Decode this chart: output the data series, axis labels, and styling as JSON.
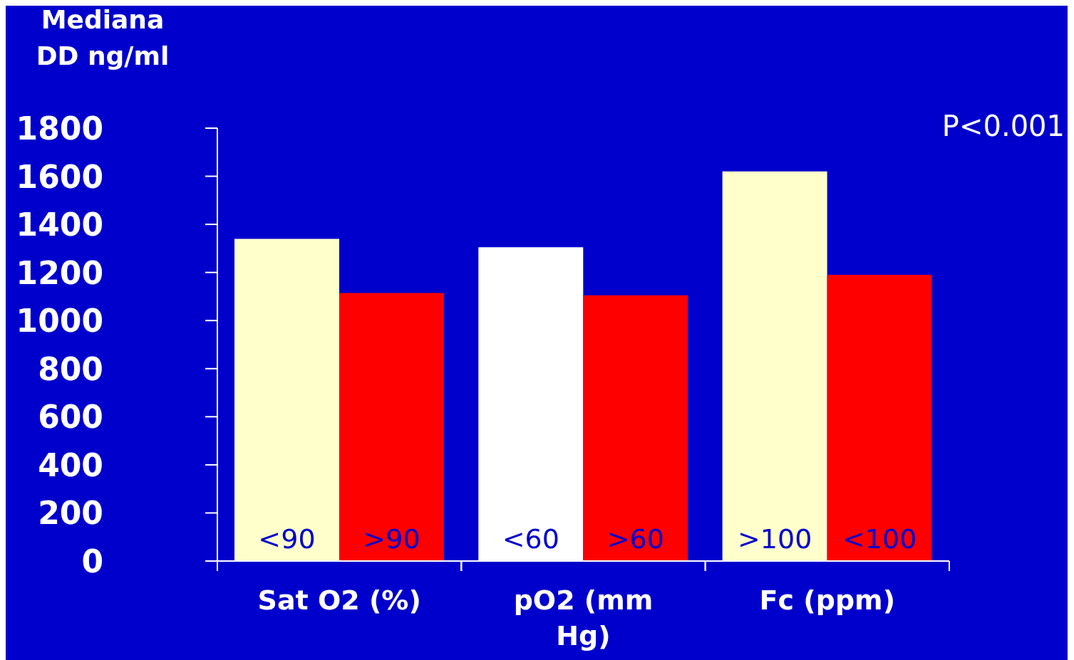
{
  "chart_data": {
    "type": "bar",
    "ylabel": "Mediana DD ng/ml",
    "categories": [
      "Sat O2 (%)",
      "pO2 (mm Hg)",
      "Fc (ppm)"
    ],
    "series": [
      {
        "colors": [
          "#ffffcc",
          "#ffffff",
          "#ffffcc"
        ],
        "values": [
          1340,
          1305,
          1620
        ],
        "value_labels": [
          "<90",
          "<60",
          ">100"
        ]
      },
      {
        "color": "#ff0000",
        "values": [
          1115,
          1105,
          1190
        ],
        "value_labels": [
          ">90",
          ">60",
          "<100"
        ]
      }
    ],
    "ylim": [
      0,
      1800
    ],
    "yticks": [
      0,
      200,
      400,
      600,
      800,
      1000,
      1200,
      1400,
      1600,
      1800
    ],
    "grid": false,
    "annotations": [
      "P<0.001"
    ]
  }
}
